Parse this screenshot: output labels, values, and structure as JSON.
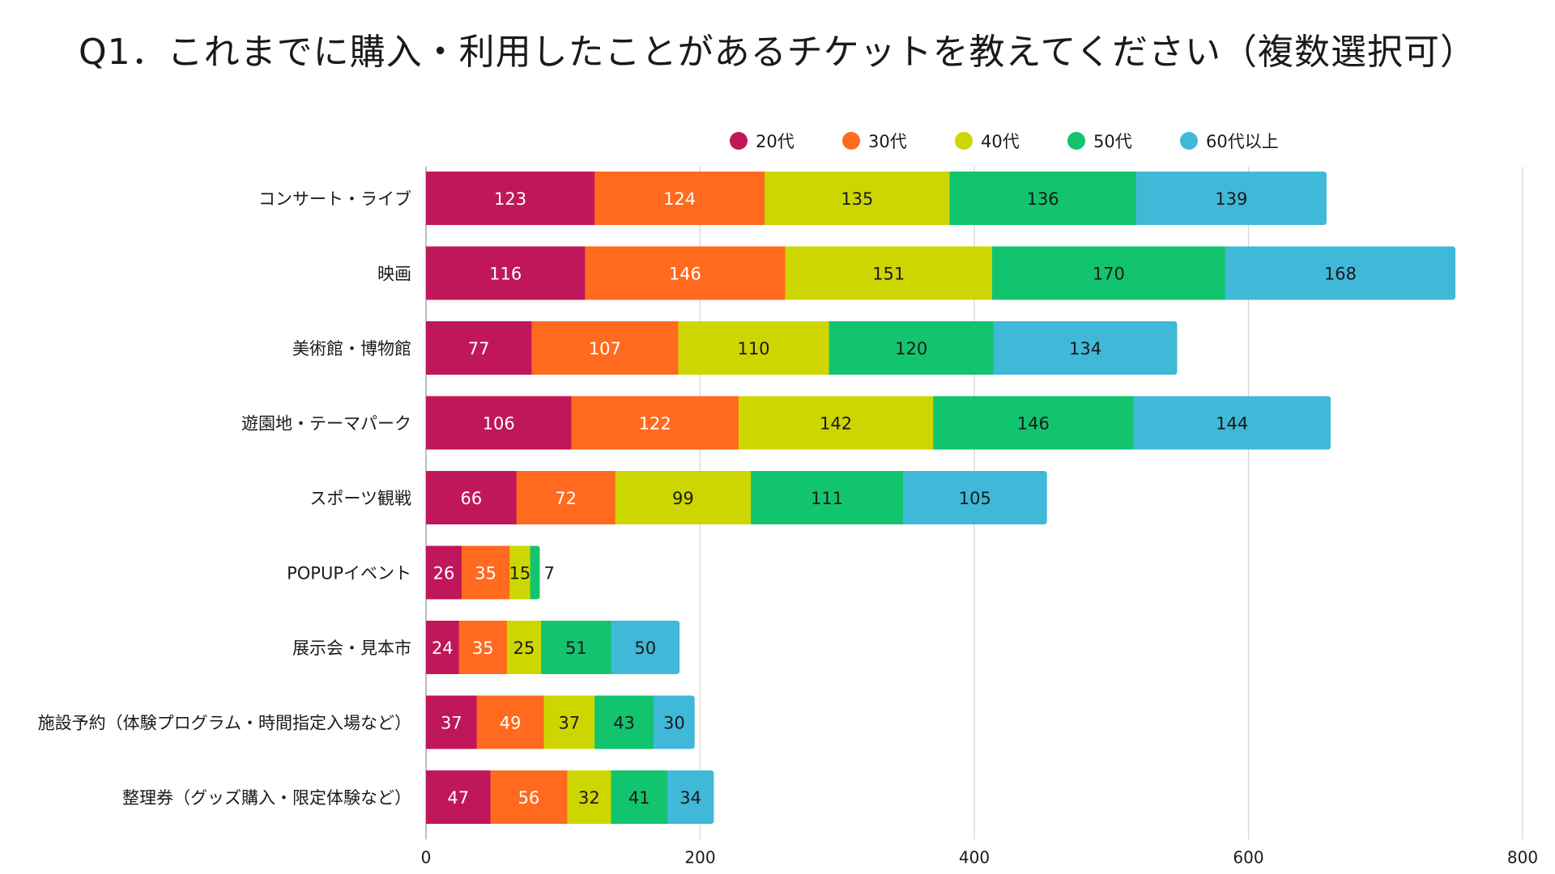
{
  "chart_data": {
    "type": "bar",
    "orientation": "horizontal",
    "stacked": true,
    "title": "Q1．これまでに購入・利用したことがあるチケットを教えてください（複数選択可）",
    "categories": [
      "コンサート・ライブ",
      "映画",
      "美術館・博物館",
      "遊園地・テーマパーク",
      "スポーツ観戦",
      "POPUPイベント",
      "展示会・見本市",
      "施設予約（体験プログラム・時間指定入場など）",
      "整理券（グッズ購入・限定体験など）"
    ],
    "series": [
      {
        "name": "20代",
        "color": "#c0175a",
        "label_color": "#ffffff",
        "values": [
          123,
          116,
          77,
          106,
          66,
          26,
          24,
          37,
          47
        ]
      },
      {
        "name": "30代",
        "color": "#ff6a1f",
        "label_color": "#ffffff",
        "values": [
          124,
          146,
          107,
          122,
          72,
          35,
          35,
          49,
          56
        ]
      },
      {
        "name": "40代",
        "color": "#cdd600",
        "label_color": "#1a1a1a",
        "values": [
          135,
          151,
          110,
          142,
          99,
          15,
          25,
          37,
          32
        ]
      },
      {
        "name": "50代",
        "color": "#12c46e",
        "label_color": "#1a1a1a",
        "values": [
          136,
          170,
          120,
          146,
          111,
          7,
          51,
          43,
          41
        ]
      },
      {
        "name": "60代以上",
        "color": "#40b8d8",
        "label_color": "#1a1a1a",
        "values": [
          139,
          168,
          134,
          144,
          105,
          0,
          50,
          30,
          34
        ]
      }
    ],
    "xlim": [
      0,
      800
    ],
    "xticks": [
      0,
      200,
      400,
      600,
      800
    ],
    "xlabel": "",
    "ylabel": "",
    "grid": true,
    "legend_position": "top"
  }
}
